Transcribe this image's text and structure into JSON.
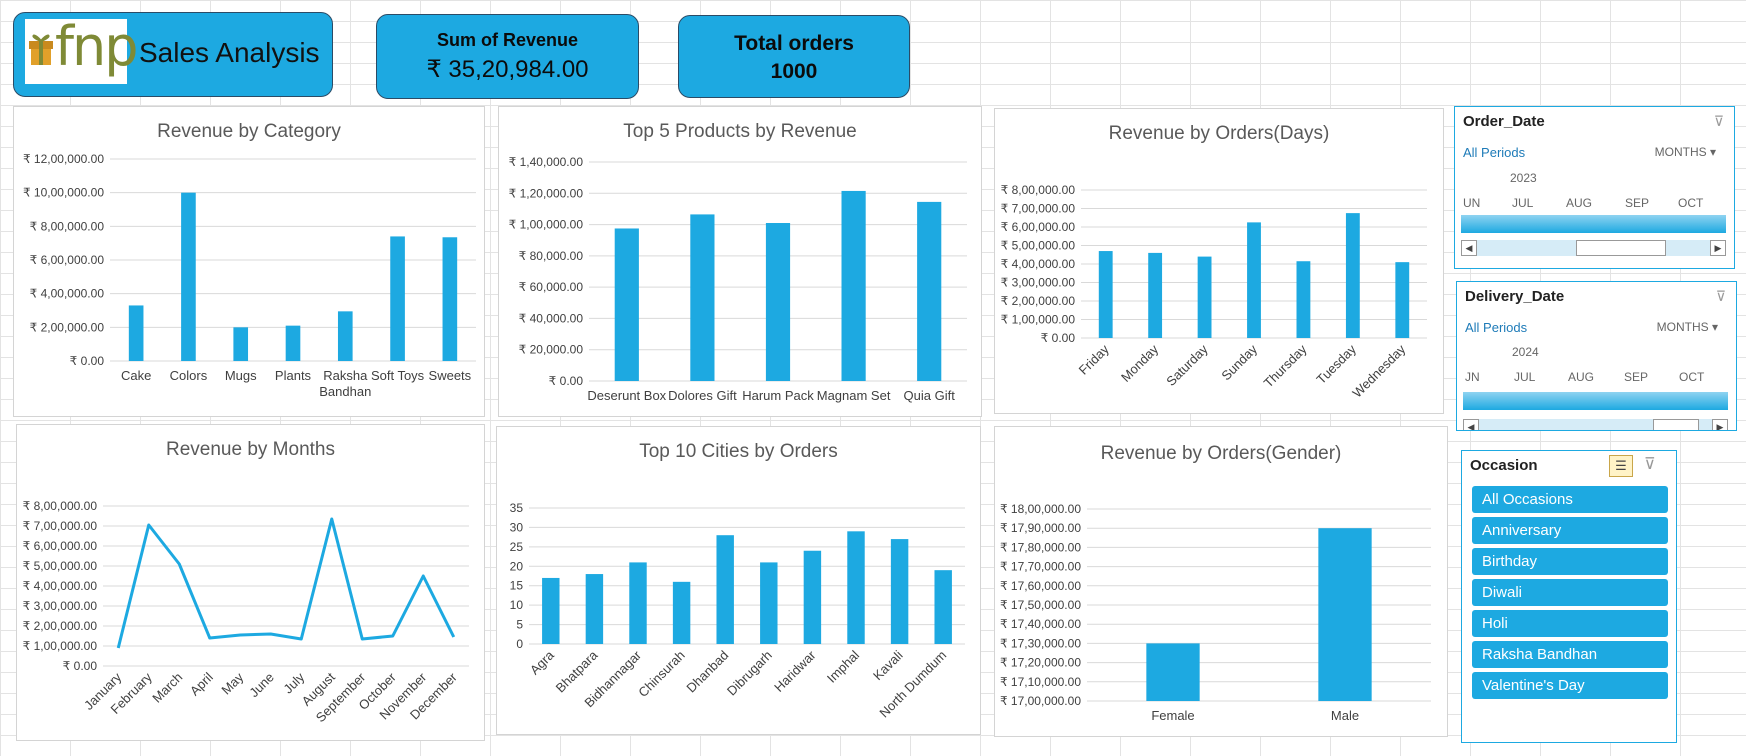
{
  "header": {
    "logo_text": "fnp",
    "title": "Sales Analysis",
    "kpis": [
      {
        "label": "Sum of Revenue",
        "value": "₹ 35,20,984.00"
      },
      {
        "label": "Total orders",
        "value": "1000"
      }
    ]
  },
  "colors": {
    "accent": "#1da9e1",
    "logo_green": "#7f8a36",
    "logo_gift": "#e1a02a"
  },
  "charts": {
    "category": {
      "title": "Revenue by Category",
      "type": "bar",
      "categories": [
        "Cake",
        "Colors",
        "Mugs",
        "Plants",
        "Raksha\nBandhan",
        "Soft Toys",
        "Sweets"
      ],
      "values": [
        330000,
        1000000,
        200000,
        210000,
        295000,
        740000,
        735000
      ],
      "ylim": [
        0,
        1200000
      ],
      "ystep": 200000,
      "yticks": [
        "₹ 0.00",
        "₹ 2,00,000.00",
        "₹ 4,00,000.00",
        "₹ 6,00,000.00",
        "₹ 8,00,000.00",
        "₹ 10,00,000.00",
        "₹ 12,00,000.00"
      ]
    },
    "products": {
      "title": "Top 5  Products by Revenue",
      "type": "bar",
      "categories": [
        "Deserunt Box",
        "Dolores Gift",
        "Harum Pack",
        "Magnam Set",
        "Quia Gift"
      ],
      "values": [
        97500,
        106500,
        101000,
        121500,
        114500
      ],
      "ylim": [
        0,
        140000
      ],
      "ystep": 20000,
      "yticks": [
        "₹ 0.00",
        "₹ 20,000.00",
        "₹ 40,000.00",
        "₹ 60,000.00",
        "₹ 80,000.00",
        "₹ 1,00,000.00",
        "₹ 1,20,000.00",
        "₹ 1,40,000.00"
      ]
    },
    "days": {
      "title": "Revenue by  Orders(Days)",
      "type": "bar",
      "categories": [
        "Friday",
        "Monday",
        "Saturday",
        "Sunday",
        "Thursday",
        "Tuesday",
        "Wednesday"
      ],
      "values": [
        470000,
        460000,
        440000,
        625000,
        415000,
        675000,
        410000
      ],
      "ylim": [
        0,
        800000
      ],
      "ystep": 100000,
      "yticks": [
        "₹ 0.00",
        "₹ 1,00,000.00",
        "₹ 2,00,000.00",
        "₹ 3,00,000.00",
        "₹ 4,00,000.00",
        "₹ 5,00,000.00",
        "₹ 6,00,000.00",
        "₹ 7,00,000.00",
        "₹ 8,00,000.00"
      ]
    },
    "months": {
      "title": "Revenue by Months",
      "type": "line",
      "categories": [
        "January",
        "February",
        "March",
        "April",
        "May",
        "June",
        "July",
        "August",
        "September",
        "October",
        "November",
        "December"
      ],
      "values": [
        90000,
        705000,
        510000,
        140000,
        155000,
        160000,
        135000,
        735000,
        135000,
        150000,
        450000,
        145000
      ],
      "ylim": [
        0,
        800000
      ],
      "ystep": 100000,
      "yticks": [
        "₹ 0.00",
        "₹ 1,00,000.00",
        "₹ 2,00,000.00",
        "₹ 3,00,000.00",
        "₹ 4,00,000.00",
        "₹ 5,00,000.00",
        "₹ 6,00,000.00",
        "₹ 7,00,000.00",
        "₹ 8,00,000.00"
      ]
    },
    "cities": {
      "title": "Top 10 Cities by Orders",
      "type": "bar",
      "categories": [
        "Agra",
        "Bhatpara",
        "Bidhannagar",
        "Chinsurah",
        "Dhanbad",
        "Dibrugarh",
        "Haridwar",
        "Imphal",
        "Kavali",
        "North Dumdum"
      ],
      "values": [
        17,
        18,
        21,
        16,
        28,
        21,
        24,
        29,
        27,
        19
      ],
      "ylim": [
        0,
        35
      ],
      "ystep": 5,
      "yticks": [
        "0",
        "5",
        "10",
        "15",
        "20",
        "25",
        "30",
        "35"
      ]
    },
    "gender": {
      "title": "Revenue by  Orders(Gender)",
      "type": "bar",
      "categories": [
        "Female",
        "Male"
      ],
      "values": [
        1730000,
        1790000
      ],
      "ylim": [
        1700000,
        1800000
      ],
      "ystep": 10000,
      "yticks": [
        "₹ 17,00,000.00",
        "₹ 17,10,000.00",
        "₹ 17,20,000.00",
        "₹ 17,30,000.00",
        "₹ 17,40,000.00",
        "₹ 17,50,000.00",
        "₹ 17,60,000.00",
        "₹ 17,70,000.00",
        "₹ 17,80,000.00",
        "₹ 17,90,000.00",
        "₹ 18,00,000.00"
      ]
    }
  },
  "chart_data": [
    {
      "type": "bar",
      "title": "Revenue by Category",
      "categories": [
        "Cake",
        "Colors",
        "Mugs",
        "Plants",
        "Raksha Bandhan",
        "Soft Toys",
        "Sweets"
      ],
      "values": [
        330000,
        1000000,
        200000,
        210000,
        295000,
        740000,
        735000
      ],
      "ylim": [
        0,
        1200000
      ]
    },
    {
      "type": "bar",
      "title": "Top 5  Products by Revenue",
      "categories": [
        "Deserunt Box",
        "Dolores Gift",
        "Harum Pack",
        "Magnam Set",
        "Quia Gift"
      ],
      "values": [
        97500,
        106500,
        101000,
        121500,
        114500
      ],
      "ylim": [
        0,
        140000
      ]
    },
    {
      "type": "bar",
      "title": "Revenue by  Orders(Days)",
      "categories": [
        "Friday",
        "Monday",
        "Saturday",
        "Sunday",
        "Thursday",
        "Tuesday",
        "Wednesday"
      ],
      "values": [
        470000,
        460000,
        440000,
        625000,
        415000,
        675000,
        410000
      ],
      "ylim": [
        0,
        800000
      ]
    },
    {
      "type": "line",
      "title": "Revenue by Months",
      "categories": [
        "January",
        "February",
        "March",
        "April",
        "May",
        "June",
        "July",
        "August",
        "September",
        "October",
        "November",
        "December"
      ],
      "values": [
        90000,
        705000,
        510000,
        140000,
        155000,
        160000,
        135000,
        735000,
        135000,
        150000,
        450000,
        145000
      ],
      "ylim": [
        0,
        800000
      ]
    },
    {
      "type": "bar",
      "title": "Top 10 Cities by Orders",
      "categories": [
        "Agra",
        "Bhatpara",
        "Bidhannagar",
        "Chinsurah",
        "Dhanbad",
        "Dibrugarh",
        "Haridwar",
        "Imphal",
        "Kavali",
        "North Dumdum"
      ],
      "values": [
        17,
        18,
        21,
        16,
        28,
        21,
        24,
        29,
        27,
        19
      ],
      "ylim": [
        0,
        35
      ]
    },
    {
      "type": "bar",
      "title": "Revenue by  Orders(Gender)",
      "categories": [
        "Female",
        "Male"
      ],
      "values": [
        1730000,
        1790000
      ],
      "ylim": [
        1700000,
        1800000
      ]
    }
  ],
  "slicers": {
    "order_date": {
      "title": "Order_Date",
      "period": "All Periods",
      "level": "MONTHS",
      "year": "2023",
      "months": [
        "UN",
        "JUL",
        "AUG",
        "SEP",
        "OCT"
      ]
    },
    "delivery_date": {
      "title": "Delivery_Date",
      "period": "All Periods",
      "level": "MONTHS",
      "year": "2024",
      "months": [
        "JN",
        "JUL",
        "AUG",
        "SEP",
        "OCT"
      ]
    },
    "occasion": {
      "title": "Occasion",
      "items": [
        "All Occasions",
        "Anniversary",
        "Birthday",
        "Diwali",
        "Holi",
        "Raksha Bandhan",
        "Valentine's Day"
      ]
    }
  }
}
